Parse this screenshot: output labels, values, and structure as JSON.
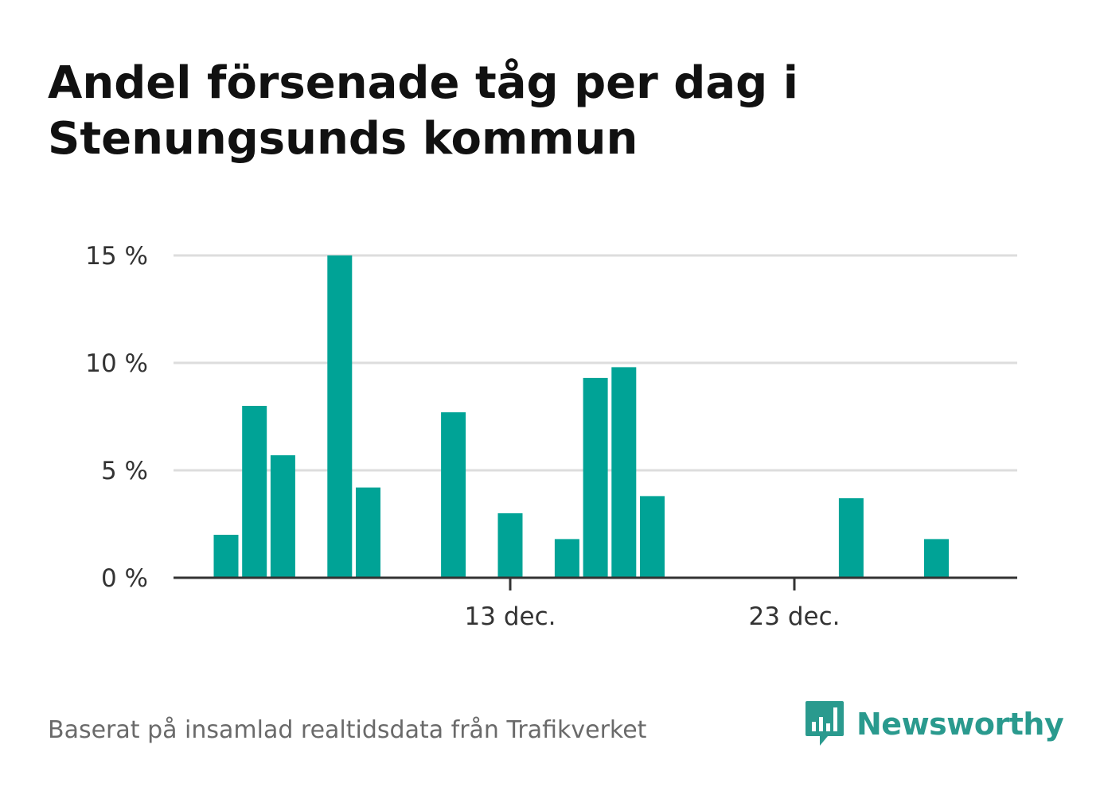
{
  "title": "Andel försenade tåg per dag i Stenungsunds kommun",
  "source": "Baserat på insamlad realtidsdata från Trafikverket",
  "brand": {
    "name": "Newsworthy",
    "icon": "newsworthy-bar-chart-speech-bubble-icon",
    "color": "#2a9a8e"
  },
  "colors": {
    "bar": "#00a396",
    "grid": "#dddddd",
    "axis": "#333333"
  },
  "chart_data": {
    "type": "bar",
    "x": [
      "2024-12-03",
      "2024-12-04",
      "2024-12-05",
      "2024-12-06",
      "2024-12-07",
      "2024-12-08",
      "2024-12-09",
      "2024-12-10",
      "2024-12-11",
      "2024-12-12",
      "2024-12-13",
      "2024-12-14",
      "2024-12-15",
      "2024-12-16",
      "2024-12-17",
      "2024-12-18",
      "2024-12-19",
      "2024-12-20",
      "2024-12-21",
      "2024-12-22",
      "2024-12-23",
      "2024-12-24",
      "2024-12-25",
      "2024-12-26",
      "2024-12-27",
      "2024-12-28",
      "2024-12-29",
      "2024-12-30"
    ],
    "values": [
      2.0,
      8.0,
      5.7,
      0,
      15.0,
      4.2,
      0,
      0,
      7.7,
      0,
      3.0,
      0,
      1.8,
      9.3,
      9.8,
      3.8,
      0,
      0,
      0,
      0,
      0,
      0,
      3.7,
      0,
      0,
      1.8,
      0,
      0
    ],
    "ylim": [
      0,
      15
    ],
    "yticks": [
      0,
      5,
      10,
      15
    ],
    "ytick_labels": [
      "0 %",
      "5 %",
      "10 %",
      "15 %"
    ],
    "xticks": [
      "2024-12-13",
      "2024-12-23"
    ],
    "xtick_labels": [
      "13 dec.",
      "23 dec."
    ],
    "grid": true,
    "legend": "none"
  }
}
